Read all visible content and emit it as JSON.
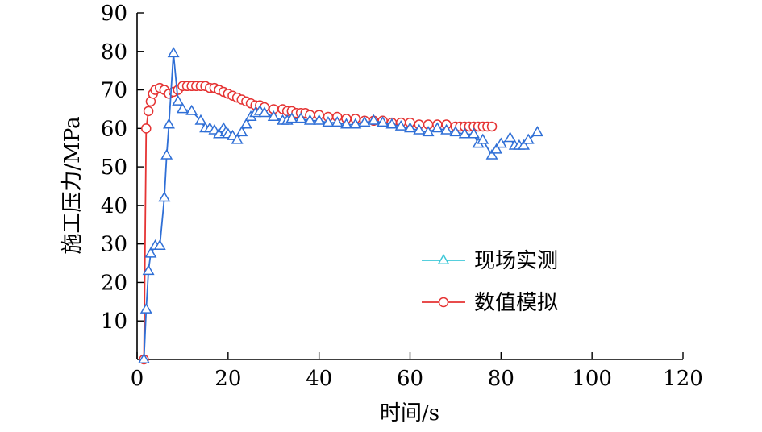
{
  "colors": {
    "measured_line": "#2f6fd6",
    "measured_legend": "#3ec8d8",
    "simulated": "#e53333",
    "axis": "#000000"
  },
  "chart_data": {
    "type": "line",
    "xlabel": "时间/s",
    "ylabel": "施工压力/MPa",
    "xlim": [
      0,
      120
    ],
    "ylim": [
      0,
      90
    ],
    "xticks": [
      0,
      20,
      40,
      60,
      80,
      100,
      120
    ],
    "yticks": [
      10,
      20,
      30,
      40,
      50,
      60,
      70,
      80,
      90
    ],
    "grid": false,
    "legend_position": "center-right",
    "series": [
      {
        "name": "现场实测",
        "marker": "triangle",
        "x": [
          1.5,
          2,
          2.5,
          3,
          4,
          5,
          6,
          6.5,
          7,
          8,
          9,
          10,
          12,
          14,
          15,
          16,
          17,
          18,
          19,
          19.5,
          20,
          21,
          22,
          23,
          24,
          25,
          26,
          27,
          28,
          30,
          32,
          33,
          34,
          36,
          38,
          40,
          42,
          44,
          46,
          48,
          50,
          52,
          54,
          56,
          58,
          60,
          62,
          64,
          66,
          68,
          70,
          72,
          74,
          75,
          76,
          78,
          79,
          80,
          82,
          83,
          84,
          85,
          86,
          88
        ],
        "y": [
          0,
          13,
          23,
          27.5,
          29.5,
          29.5,
          42,
          53,
          61,
          79.5,
          67,
          65,
          64.5,
          62,
          60,
          60,
          59.5,
          58.5,
          60,
          59,
          58.5,
          58,
          57,
          59,
          61,
          63,
          64,
          64.5,
          64,
          63,
          62,
          62,
          62.5,
          62.5,
          62,
          62,
          61.5,
          61.5,
          61,
          61,
          61.5,
          62,
          61.5,
          61,
          60.5,
          60,
          59.5,
          59,
          60,
          59.5,
          59,
          58.5,
          58.5,
          56,
          57,
          53,
          54.5,
          56,
          57.5,
          55.5,
          55.5,
          55.5,
          57,
          59
        ]
      },
      {
        "name": "数值模拟",
        "marker": "circle",
        "x": [
          1.5,
          2,
          2.5,
          3,
          3.5,
          4,
          5,
          6,
          7,
          8,
          9,
          10,
          11,
          12,
          13,
          14,
          15,
          16,
          17,
          18,
          19,
          20,
          21,
          22,
          23,
          24,
          25,
          26,
          27,
          28,
          30,
          32,
          33,
          34,
          35,
          36,
          37,
          38,
          40,
          42,
          44,
          46,
          48,
          50,
          52,
          54,
          56,
          58,
          60,
          62,
          64,
          66,
          68,
          70,
          71,
          72,
          73,
          74,
          75,
          76,
          77,
          78
        ],
        "y": [
          0,
          60,
          64.5,
          67,
          69,
          70,
          70.5,
          70,
          69,
          69.5,
          70,
          71,
          71,
          71,
          71,
          71,
          71,
          70.5,
          70.5,
          70,
          69.5,
          69,
          68.5,
          68,
          67.5,
          67,
          66.5,
          66,
          66,
          65.5,
          65,
          65,
          64.5,
          64.5,
          64,
          64,
          64,
          63.5,
          63.5,
          63,
          63,
          62.5,
          62.5,
          62,
          62,
          62,
          61.5,
          61.5,
          61.5,
          61,
          61,
          61,
          61,
          60.5,
          60.5,
          60.5,
          60.5,
          60.5,
          60.5,
          60.5,
          60.5,
          60.5
        ]
      }
    ]
  }
}
